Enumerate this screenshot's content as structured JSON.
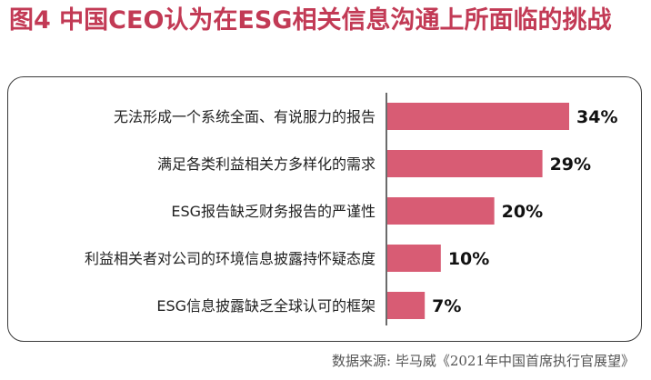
{
  "title": "图4  中国CEO认为在ESG相关信息沟通上所面临的挑战",
  "source": "数据来源: 毕马威《2021年中国首席执行官展望》",
  "colors": {
    "title": "#c23a55",
    "bar": "#d85c74",
    "axis": "#3a3a3a"
  },
  "chart_data": {
    "type": "bar",
    "orientation": "horizontal",
    "categories": [
      "无法形成一个系统全面、有说服力的报告",
      "满足各类利益相关方多样化的需求",
      "ESG报告缺乏财务报告的严谨性",
      "利益相关者对公司的环境信息披露持怀疑态度",
      "ESG信息披露缺乏全球认可的框架"
    ],
    "values": [
      34,
      29,
      20,
      10,
      7
    ],
    "value_labels": [
      "34%",
      "29%",
      "20%",
      "10%",
      "7%"
    ],
    "unit": "%",
    "grid": false
  }
}
